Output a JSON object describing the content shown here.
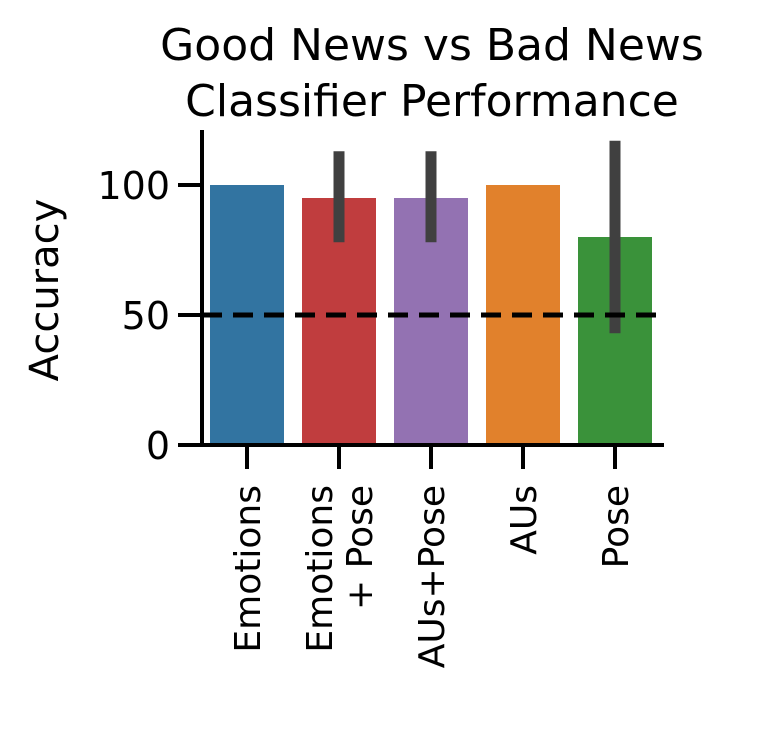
{
  "chart_data": {
    "type": "bar",
    "title_lines": [
      "Good News vs Bad News",
      "Classifier Performance"
    ],
    "ylabel": "Accuracy",
    "xlabel": "",
    "ylim": [
      0,
      120
    ],
    "yticks": [
      0,
      50,
      100
    ],
    "categories": [
      [
        "Emotions"
      ],
      [
        "Emotions",
        "+ Pose"
      ],
      [
        "AUs+Pose"
      ],
      [
        "AUs"
      ],
      [
        "Pose"
      ]
    ],
    "values": [
      100,
      95,
      95,
      100,
      80
    ],
    "error_bars": [
      null,
      [
        78,
        113
      ],
      [
        78,
        113
      ],
      null,
      [
        43,
        117
      ]
    ],
    "colors": [
      "#3274a1",
      "#c03d3e",
      "#9372b2",
      "#e1812c",
      "#3a923a"
    ],
    "error_bar_color": "#404040",
    "reference_line": {
      "value": 50,
      "style": "dashed",
      "color": "#000000"
    },
    "grid": false,
    "legend": "none"
  }
}
